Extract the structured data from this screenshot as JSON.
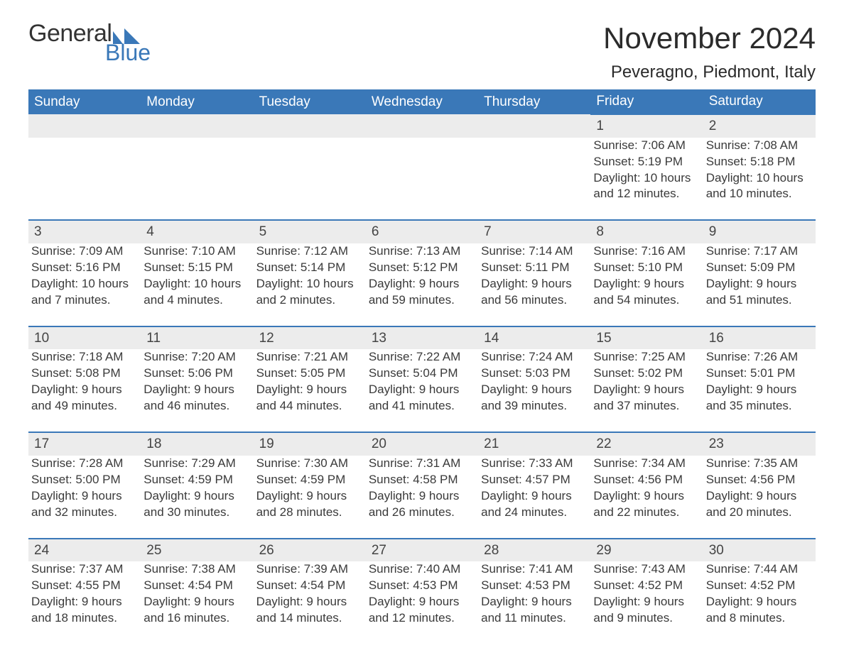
{
  "logo": {
    "text_general": "General",
    "text_blue": "Blue",
    "icon_color": "#3a78b8"
  },
  "title": "November 2024",
  "location": "Peveragno, Piedmont, Italy",
  "colors": {
    "header_bg": "#3a78b8",
    "header_text": "#ffffff",
    "daynum_bg": "#ececec",
    "daynum_border": "#3a78b8",
    "body_text": "#3a3a3a",
    "page_bg": "#ffffff"
  },
  "typography": {
    "title_fontsize": 42,
    "location_fontsize": 24,
    "header_fontsize": 19,
    "cell_fontsize": 17
  },
  "layout": {
    "columns": 7,
    "rows": 5,
    "leading_blanks": 5
  },
  "weekdays": [
    "Sunday",
    "Monday",
    "Tuesday",
    "Wednesday",
    "Thursday",
    "Friday",
    "Saturday"
  ],
  "days": [
    {
      "n": 1,
      "sunrise": "7:06 AM",
      "sunset": "5:19 PM",
      "daylight": "10 hours and 12 minutes."
    },
    {
      "n": 2,
      "sunrise": "7:08 AM",
      "sunset": "5:18 PM",
      "daylight": "10 hours and 10 minutes."
    },
    {
      "n": 3,
      "sunrise": "7:09 AM",
      "sunset": "5:16 PM",
      "daylight": "10 hours and 7 minutes."
    },
    {
      "n": 4,
      "sunrise": "7:10 AM",
      "sunset": "5:15 PM",
      "daylight": "10 hours and 4 minutes."
    },
    {
      "n": 5,
      "sunrise": "7:12 AM",
      "sunset": "5:14 PM",
      "daylight": "10 hours and 2 minutes."
    },
    {
      "n": 6,
      "sunrise": "7:13 AM",
      "sunset": "5:12 PM",
      "daylight": "9 hours and 59 minutes."
    },
    {
      "n": 7,
      "sunrise": "7:14 AM",
      "sunset": "5:11 PM",
      "daylight": "9 hours and 56 minutes."
    },
    {
      "n": 8,
      "sunrise": "7:16 AM",
      "sunset": "5:10 PM",
      "daylight": "9 hours and 54 minutes."
    },
    {
      "n": 9,
      "sunrise": "7:17 AM",
      "sunset": "5:09 PM",
      "daylight": "9 hours and 51 minutes."
    },
    {
      "n": 10,
      "sunrise": "7:18 AM",
      "sunset": "5:08 PM",
      "daylight": "9 hours and 49 minutes."
    },
    {
      "n": 11,
      "sunrise": "7:20 AM",
      "sunset": "5:06 PM",
      "daylight": "9 hours and 46 minutes."
    },
    {
      "n": 12,
      "sunrise": "7:21 AM",
      "sunset": "5:05 PM",
      "daylight": "9 hours and 44 minutes."
    },
    {
      "n": 13,
      "sunrise": "7:22 AM",
      "sunset": "5:04 PM",
      "daylight": "9 hours and 41 minutes."
    },
    {
      "n": 14,
      "sunrise": "7:24 AM",
      "sunset": "5:03 PM",
      "daylight": "9 hours and 39 minutes."
    },
    {
      "n": 15,
      "sunrise": "7:25 AM",
      "sunset": "5:02 PM",
      "daylight": "9 hours and 37 minutes."
    },
    {
      "n": 16,
      "sunrise": "7:26 AM",
      "sunset": "5:01 PM",
      "daylight": "9 hours and 35 minutes."
    },
    {
      "n": 17,
      "sunrise": "7:28 AM",
      "sunset": "5:00 PM",
      "daylight": "9 hours and 32 minutes."
    },
    {
      "n": 18,
      "sunrise": "7:29 AM",
      "sunset": "4:59 PM",
      "daylight": "9 hours and 30 minutes."
    },
    {
      "n": 19,
      "sunrise": "7:30 AM",
      "sunset": "4:59 PM",
      "daylight": "9 hours and 28 minutes."
    },
    {
      "n": 20,
      "sunrise": "7:31 AM",
      "sunset": "4:58 PM",
      "daylight": "9 hours and 26 minutes."
    },
    {
      "n": 21,
      "sunrise": "7:33 AM",
      "sunset": "4:57 PM",
      "daylight": "9 hours and 24 minutes."
    },
    {
      "n": 22,
      "sunrise": "7:34 AM",
      "sunset": "4:56 PM",
      "daylight": "9 hours and 22 minutes."
    },
    {
      "n": 23,
      "sunrise": "7:35 AM",
      "sunset": "4:56 PM",
      "daylight": "9 hours and 20 minutes."
    },
    {
      "n": 24,
      "sunrise": "7:37 AM",
      "sunset": "4:55 PM",
      "daylight": "9 hours and 18 minutes."
    },
    {
      "n": 25,
      "sunrise": "7:38 AM",
      "sunset": "4:54 PM",
      "daylight": "9 hours and 16 minutes."
    },
    {
      "n": 26,
      "sunrise": "7:39 AM",
      "sunset": "4:54 PM",
      "daylight": "9 hours and 14 minutes."
    },
    {
      "n": 27,
      "sunrise": "7:40 AM",
      "sunset": "4:53 PM",
      "daylight": "9 hours and 12 minutes."
    },
    {
      "n": 28,
      "sunrise": "7:41 AM",
      "sunset": "4:53 PM",
      "daylight": "9 hours and 11 minutes."
    },
    {
      "n": 29,
      "sunrise": "7:43 AM",
      "sunset": "4:52 PM",
      "daylight": "9 hours and 9 minutes."
    },
    {
      "n": 30,
      "sunrise": "7:44 AM",
      "sunset": "4:52 PM",
      "daylight": "9 hours and 8 minutes."
    }
  ],
  "labels": {
    "sunrise": "Sunrise: ",
    "sunset": "Sunset: ",
    "daylight": "Daylight: "
  }
}
